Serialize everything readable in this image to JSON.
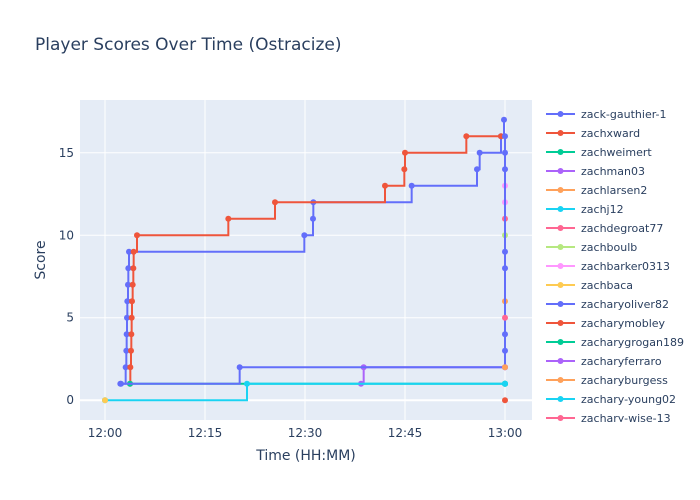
{
  "chart_data": {
    "type": "line",
    "title": "Player Scores Over Time (Ostracize)",
    "xlabel": "Time (HH:MM)",
    "ylabel": "Score",
    "xlim": [
      "11:56:15",
      "13:04:03"
    ],
    "ylim": [
      -1.2,
      18.2
    ],
    "xticks": [
      "12:00",
      "12:15",
      "12:30",
      "12:45",
      "13:00"
    ],
    "yticks": [
      0,
      5,
      10,
      15
    ],
    "grid": true,
    "line_shape": "step-hv",
    "legend_placement": "right",
    "series": [
      {
        "name": "zack-gauthier-1",
        "color": "#636efa",
        "points": [
          [
            "12:02:24",
            1
          ],
          [
            "12:03:06",
            2
          ],
          [
            "12:03:12",
            3
          ],
          [
            "12:03:15",
            4
          ],
          [
            "12:03:18",
            5
          ],
          [
            "12:03:21",
            6
          ],
          [
            "12:03:27",
            7
          ],
          [
            "12:03:30",
            8
          ],
          [
            "12:03:36",
            9
          ],
          [
            "12:29:54",
            10
          ],
          [
            "12:31:12",
            11
          ],
          [
            "12:31:15",
            12
          ],
          [
            "12:46:00",
            13
          ],
          [
            "12:55:48",
            14
          ],
          [
            "12:56:12",
            15
          ],
          [
            "12:59:24",
            16
          ],
          [
            "12:59:51",
            17
          ]
        ]
      },
      {
        "name": "zachxward",
        "color": "#EF553B",
        "points": [
          [
            "12:03:45",
            1
          ],
          [
            "12:03:48",
            2
          ],
          [
            "12:03:54",
            3
          ],
          [
            "12:03:57",
            4
          ],
          [
            "12:04:00",
            5
          ],
          [
            "12:04:03",
            6
          ],
          [
            "12:04:09",
            7
          ],
          [
            "12:04:15",
            8
          ],
          [
            "12:04:18",
            9
          ],
          [
            "12:04:48",
            10
          ],
          [
            "12:18:30",
            11
          ],
          [
            "12:25:30",
            12
          ],
          [
            "12:42:00",
            13
          ],
          [
            "12:44:54",
            14
          ],
          [
            "12:45:00",
            15
          ],
          [
            "12:54:12",
            16
          ],
          [
            "12:59:24",
            16
          ]
        ]
      },
      {
        "name": "zachweimert",
        "color": "#00cc96",
        "points": [
          [
            "12:03:45",
            1
          ],
          [
            "13:00:00",
            1
          ]
        ]
      },
      {
        "name": "zachman03",
        "color": "#ab63fa",
        "points": [
          [
            "12:38:24",
            1
          ],
          [
            "12:38:48",
            2
          ],
          [
            "13:00:00",
            2
          ]
        ]
      },
      {
        "name": "zachlarsen2",
        "color": "#FFA15A",
        "points": [
          [
            "13:00:00",
            6
          ]
        ]
      },
      {
        "name": "zachj12",
        "color": "#19d3f3",
        "points": [
          [
            "12:00:00",
            0
          ],
          [
            "12:21:18",
            1
          ],
          [
            "13:00:00",
            1
          ]
        ]
      },
      {
        "name": "zachdegroat77",
        "color": "#FF6692",
        "points": [
          [
            "13:00:00",
            11
          ]
        ]
      },
      {
        "name": "zachboulb",
        "color": "#B6E880",
        "points": [
          [
            "13:00:00",
            10
          ]
        ]
      },
      {
        "name": "zachbarker0313",
        "color": "#FF97FF",
        "points": [
          [
            "13:00:00",
            12
          ],
          [
            "13:00:00",
            13
          ]
        ]
      },
      {
        "name": "zachbaca",
        "color": "#FECB52",
        "points": [
          [
            "12:00:00",
            0
          ]
        ]
      },
      {
        "name": "zacharyoliver82",
        "color": "#636efa",
        "points": [
          [
            "12:02:18",
            1
          ],
          [
            "12:20:12",
            2
          ],
          [
            "13:00:00",
            3
          ],
          [
            "13:00:00",
            4
          ],
          [
            "13:00:00",
            8
          ],
          [
            "13:00:00",
            9
          ],
          [
            "13:00:00",
            14
          ],
          [
            "13:00:00",
            15
          ],
          [
            "13:00:00",
            16
          ]
        ]
      },
      {
        "name": "zacharymobley",
        "color": "#EF553B",
        "points": [
          [
            "13:00:00",
            0
          ]
        ]
      },
      {
        "name": "zacharygrogan189",
        "color": "#00cc96",
        "points": [
          [
            "13:00:00",
            1
          ]
        ]
      },
      {
        "name": "zacharyferraro",
        "color": "#ab63fa",
        "points": [
          [
            "13:00:00",
            2
          ]
        ]
      },
      {
        "name": "zacharyburgess",
        "color": "#FFA15A",
        "points": [
          [
            "13:00:00",
            2
          ]
        ]
      },
      {
        "name": "zachary-young02",
        "color": "#19d3f3",
        "points": [
          [
            "13:00:00",
            1
          ]
        ]
      },
      {
        "name": "zachary-wise-13",
        "color": "#FF6692",
        "points": [
          [
            "13:00:00",
            5
          ]
        ]
      }
    ]
  }
}
